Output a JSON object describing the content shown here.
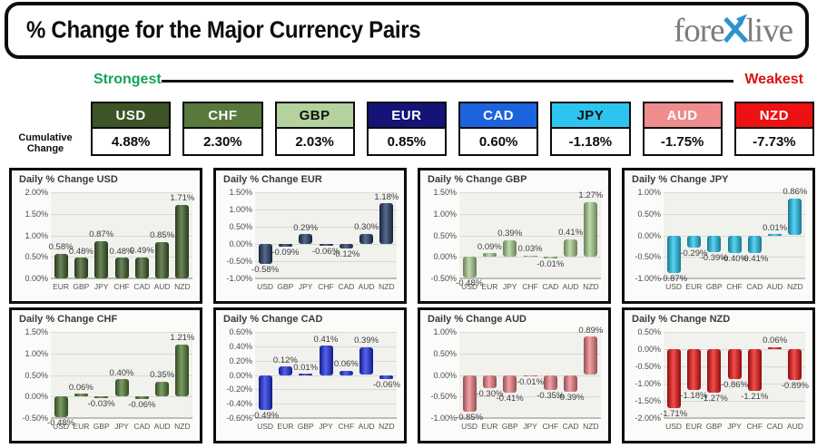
{
  "header": {
    "title": "% Change for the Major Currency Pairs",
    "logo": {
      "part1": "fore",
      "x_mark": "X",
      "part2": "live",
      "x_color": "#2e93cd",
      "text_color": "#7c7c7c"
    },
    "strongest_label": "Strongest",
    "weakest_label": "Weakest",
    "strongest_color": "#16a358",
    "weakest_color": "#dd1111"
  },
  "cumulative": {
    "row_label_line1": "Cumulative",
    "row_label_line2": "Change",
    "items": [
      {
        "code": "USD",
        "value": "4.88%",
        "color": "#3d5426",
        "text_color": "#ffffff"
      },
      {
        "code": "CHF",
        "value": "2.30%",
        "color": "#57793c",
        "text_color": "#ffffff"
      },
      {
        "code": "GBP",
        "value": "2.03%",
        "color": "#b4d29d",
        "text_color": "#111111"
      },
      {
        "code": "EUR",
        "value": "0.85%",
        "color": "#131378",
        "text_color": "#ffffff"
      },
      {
        "code": "CAD",
        "value": "0.60%",
        "color": "#1c63de",
        "text_color": "#ffffff"
      },
      {
        "code": "JPY",
        "value": "-1.18%",
        "color": "#2cc5ef",
        "text_color": "#111111"
      },
      {
        "code": "AUD",
        "value": "-1.75%",
        "color": "#ef8c8c",
        "text_color": "#ffffff"
      },
      {
        "code": "NZD",
        "value": "-7.73%",
        "color": "#ee1111",
        "text_color": "#ffffff"
      }
    ]
  },
  "chart_data": [
    {
      "type": "bar",
      "title": "Daily % Change USD",
      "bar_color": "#3d5c26",
      "grid": true,
      "legend": false,
      "categories": [
        "EUR",
        "GBP",
        "JPY",
        "CHF",
        "CAD",
        "AUD",
        "NZD"
      ],
      "values": [
        0.58,
        0.48,
        0.87,
        0.48,
        0.49,
        0.85,
        1.71
      ],
      "ylim": [
        0.0,
        2.0
      ],
      "ystep": 0.5
    },
    {
      "type": "bar",
      "title": "Daily % Change EUR",
      "bar_color": "#1f3864",
      "grid": true,
      "legend": false,
      "categories": [
        "USD",
        "GBP",
        "JPY",
        "CHF",
        "CAD",
        "AUD",
        "NZD"
      ],
      "values": [
        -0.58,
        -0.09,
        0.29,
        -0.06,
        -0.12,
        0.3,
        1.18
      ],
      "ylim": [
        -1.0,
        1.5
      ],
      "ystep": 0.5
    },
    {
      "type": "bar",
      "title": "Daily % Change GBP",
      "bar_color": "#a9cf8f",
      "grid": true,
      "legend": false,
      "categories": [
        "USD",
        "EUR",
        "JPY",
        "CHF",
        "CAD",
        "AUD",
        "NZD"
      ],
      "values": [
        -0.48,
        0.09,
        0.39,
        0.03,
        -0.01,
        0.41,
        1.27
      ],
      "ylim": [
        -0.5,
        1.5
      ],
      "ystep": 0.5
    },
    {
      "type": "bar",
      "title": "Daily % Change JPY",
      "bar_color": "#22c3ee",
      "grid": true,
      "legend": false,
      "categories": [
        "USD",
        "EUR",
        "GBP",
        "CHF",
        "CAD",
        "AUD",
        "NZD"
      ],
      "values": [
        -0.87,
        -0.29,
        -0.39,
        -0.4,
        -0.41,
        0.01,
        0.86
      ],
      "ylim": [
        -1.0,
        1.0
      ],
      "ystep": 0.5
    },
    {
      "type": "bar",
      "title": "Daily % Change CHF",
      "bar_color": "#507b33",
      "grid": true,
      "legend": false,
      "categories": [
        "USD",
        "EUR",
        "GBP",
        "JPY",
        "CAD",
        "AUD",
        "NZD"
      ],
      "values": [
        -0.48,
        0.06,
        -0.03,
        0.4,
        -0.06,
        0.35,
        1.21
      ],
      "ylim": [
        -0.5,
        1.5
      ],
      "ystep": 0.5
    },
    {
      "type": "bar",
      "title": "Daily % Change CAD",
      "bar_color": "#1b2de4",
      "grid": true,
      "legend": false,
      "categories": [
        "USD",
        "EUR",
        "GBP",
        "JPY",
        "CHF",
        "AUD",
        "NZD"
      ],
      "values": [
        -0.49,
        0.12,
        0.01,
        0.41,
        0.06,
        0.39,
        -0.06
      ],
      "ylim": [
        -0.6,
        0.6
      ],
      "ystep": 0.2
    },
    {
      "type": "bar",
      "title": "Daily % Change AUD",
      "bar_color": "#ef8287",
      "grid": true,
      "legend": false,
      "categories": [
        "USD",
        "EUR",
        "GBP",
        "JPY",
        "CHF",
        "CAD",
        "NZD"
      ],
      "values": [
        -0.85,
        -0.3,
        -0.41,
        -0.01,
        -0.35,
        -0.39,
        0.89
      ],
      "ylim": [
        -1.0,
        1.0
      ],
      "ystep": 0.5
    },
    {
      "type": "bar",
      "title": "Daily % Change NZD",
      "bar_color": "#ec1212",
      "grid": true,
      "legend": false,
      "categories": [
        "USD",
        "EUR",
        "GBP",
        "JPY",
        "CHF",
        "CAD",
        "AUD"
      ],
      "values": [
        -1.71,
        -1.18,
        -1.27,
        -0.86,
        -1.21,
        0.06,
        -0.89
      ],
      "ylim": [
        -2.0,
        0.5
      ],
      "ystep": 0.5
    }
  ]
}
